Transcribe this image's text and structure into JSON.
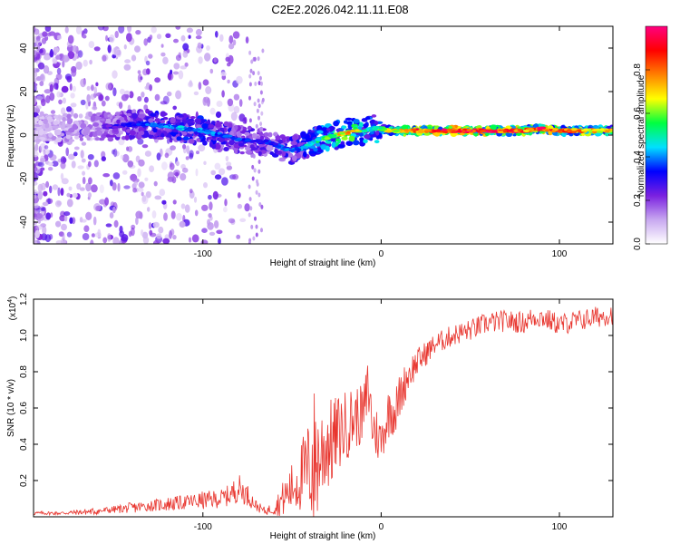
{
  "title": "C2E2.2026.042.11.11.E08",
  "chart_data": [
    {
      "type": "heatmap",
      "name": "spectrogram",
      "xlabel": "Height of straight line (km)",
      "ylabel": "Frequency (Hz)",
      "xlim": [
        -195,
        130
      ],
      "ylim": [
        -50,
        50
      ],
      "x_ticks": [
        -100,
        0,
        100
      ],
      "y_ticks": [
        -40,
        -20,
        0,
        20,
        40
      ],
      "colorbar": {
        "label": "Normalized spectral amplitude",
        "range": [
          0,
          1
        ],
        "ticks": [
          0.0,
          0.2,
          0.4,
          0.6,
          0.8
        ],
        "tick_labels": [
          "0.0",
          "0.2",
          "0.4",
          "0.6",
          "0.8"
        ],
        "colors": [
          "#ffffff",
          "#c8a8f0",
          "#7a20e0",
          "#0000ff",
          "#00e0ff",
          "#00ff40",
          "#ffff00",
          "#ff8000",
          "#ff0000",
          "#ff0080"
        ]
      },
      "ridge_frequency_track": {
        "x": [
          -195,
          -175,
          -160,
          -150,
          -140,
          -130,
          -120,
          -110,
          -100,
          -90,
          -80,
          -70,
          -65,
          -60,
          -55,
          -50,
          -45,
          -40,
          -35,
          -30,
          -25,
          -20,
          -15,
          -10,
          -5,
          0,
          5,
          10,
          20,
          40,
          60,
          80,
          90,
          100,
          120,
          130
        ],
        "freq": [
          3,
          3,
          4,
          4,
          5,
          5,
          4,
          3,
          2,
          0,
          -2,
          -3,
          -3,
          -4,
          -6,
          -7,
          -6,
          -4,
          -2,
          -1,
          0,
          1,
          2,
          2,
          3,
          3,
          2,
          2,
          2,
          2,
          2,
          2,
          3,
          2,
          2,
          2
        ],
        "amplitude": [
          0.15,
          0.2,
          0.25,
          0.3,
          0.35,
          0.4,
          0.42,
          0.45,
          0.45,
          0.4,
          0.38,
          0.35,
          0.35,
          0.38,
          0.4,
          0.42,
          0.45,
          0.5,
          0.55,
          0.6,
          0.7,
          0.8,
          0.75,
          0.6,
          0.5,
          0.65,
          0.7,
          0.75,
          0.9,
          1.0,
          1.0,
          0.9,
          0.95,
          0.9,
          0.8,
          0.75
        ]
      }
    },
    {
      "type": "line",
      "name": "snr",
      "xlabel": "Height of straight line (km)",
      "ylabel": "SNR (10 * v/v)",
      "scale_label_base": "(x10",
      "scale_label_exp": "4",
      "scale_label_close": ")",
      "xlim": [
        -195,
        130
      ],
      "ylim": [
        0,
        1.2
      ],
      "x_ticks": [
        -100,
        0,
        100
      ],
      "y_ticks": [
        0.2,
        0.4,
        0.6,
        0.8,
        1.0,
        1.2
      ],
      "y_tick_labels": [
        "0.2",
        "0.4",
        "0.6",
        "0.8",
        "1.0",
        "1.2"
      ],
      "color": "#e8352e",
      "series": [
        {
          "name": "SNR",
          "x": [
            -195,
            -180,
            -160,
            -150,
            -140,
            -130,
            -120,
            -110,
            -100,
            -90,
            -85,
            -80,
            -75,
            -70,
            -65,
            -60,
            -55,
            -50,
            -45,
            -40,
            -38,
            -35,
            -30,
            -28,
            -25,
            -20,
            -15,
            -10,
            -7,
            -5,
            -2,
            0,
            5,
            8,
            10,
            15,
            20,
            25,
            30,
            40,
            50,
            60,
            70,
            80,
            85,
            90,
            95,
            100,
            110,
            120,
            130
          ],
          "mean": [
            0.02,
            0.02,
            0.03,
            0.04,
            0.05,
            0.06,
            0.07,
            0.08,
            0.09,
            0.1,
            0.12,
            0.16,
            0.12,
            0.06,
            0.03,
            0.05,
            0.1,
            0.16,
            0.22,
            0.28,
            0.3,
            0.32,
            0.42,
            0.4,
            0.45,
            0.5,
            0.55,
            0.56,
            0.72,
            0.5,
            0.45,
            0.42,
            0.6,
            0.58,
            0.65,
            0.78,
            0.85,
            0.9,
            0.95,
            1.0,
            1.03,
            1.07,
            1.08,
            1.07,
            1.1,
            1.1,
            1.08,
            1.06,
            1.08,
            1.1,
            1.12
          ],
          "amplitude": [
            0.01,
            0.01,
            0.02,
            0.02,
            0.03,
            0.03,
            0.04,
            0.04,
            0.05,
            0.05,
            0.06,
            0.08,
            0.06,
            0.03,
            0.02,
            0.04,
            0.1,
            0.14,
            0.2,
            0.28,
            0.45,
            0.3,
            0.28,
            0.25,
            0.22,
            0.2,
            0.18,
            0.16,
            0.2,
            0.15,
            0.15,
            0.12,
            0.15,
            0.14,
            0.13,
            0.1,
            0.08,
            0.07,
            0.06,
            0.06,
            0.06,
            0.06,
            0.06,
            0.06,
            0.06,
            0.06,
            0.06,
            0.06,
            0.06,
            0.06,
            0.06
          ]
        }
      ]
    }
  ]
}
